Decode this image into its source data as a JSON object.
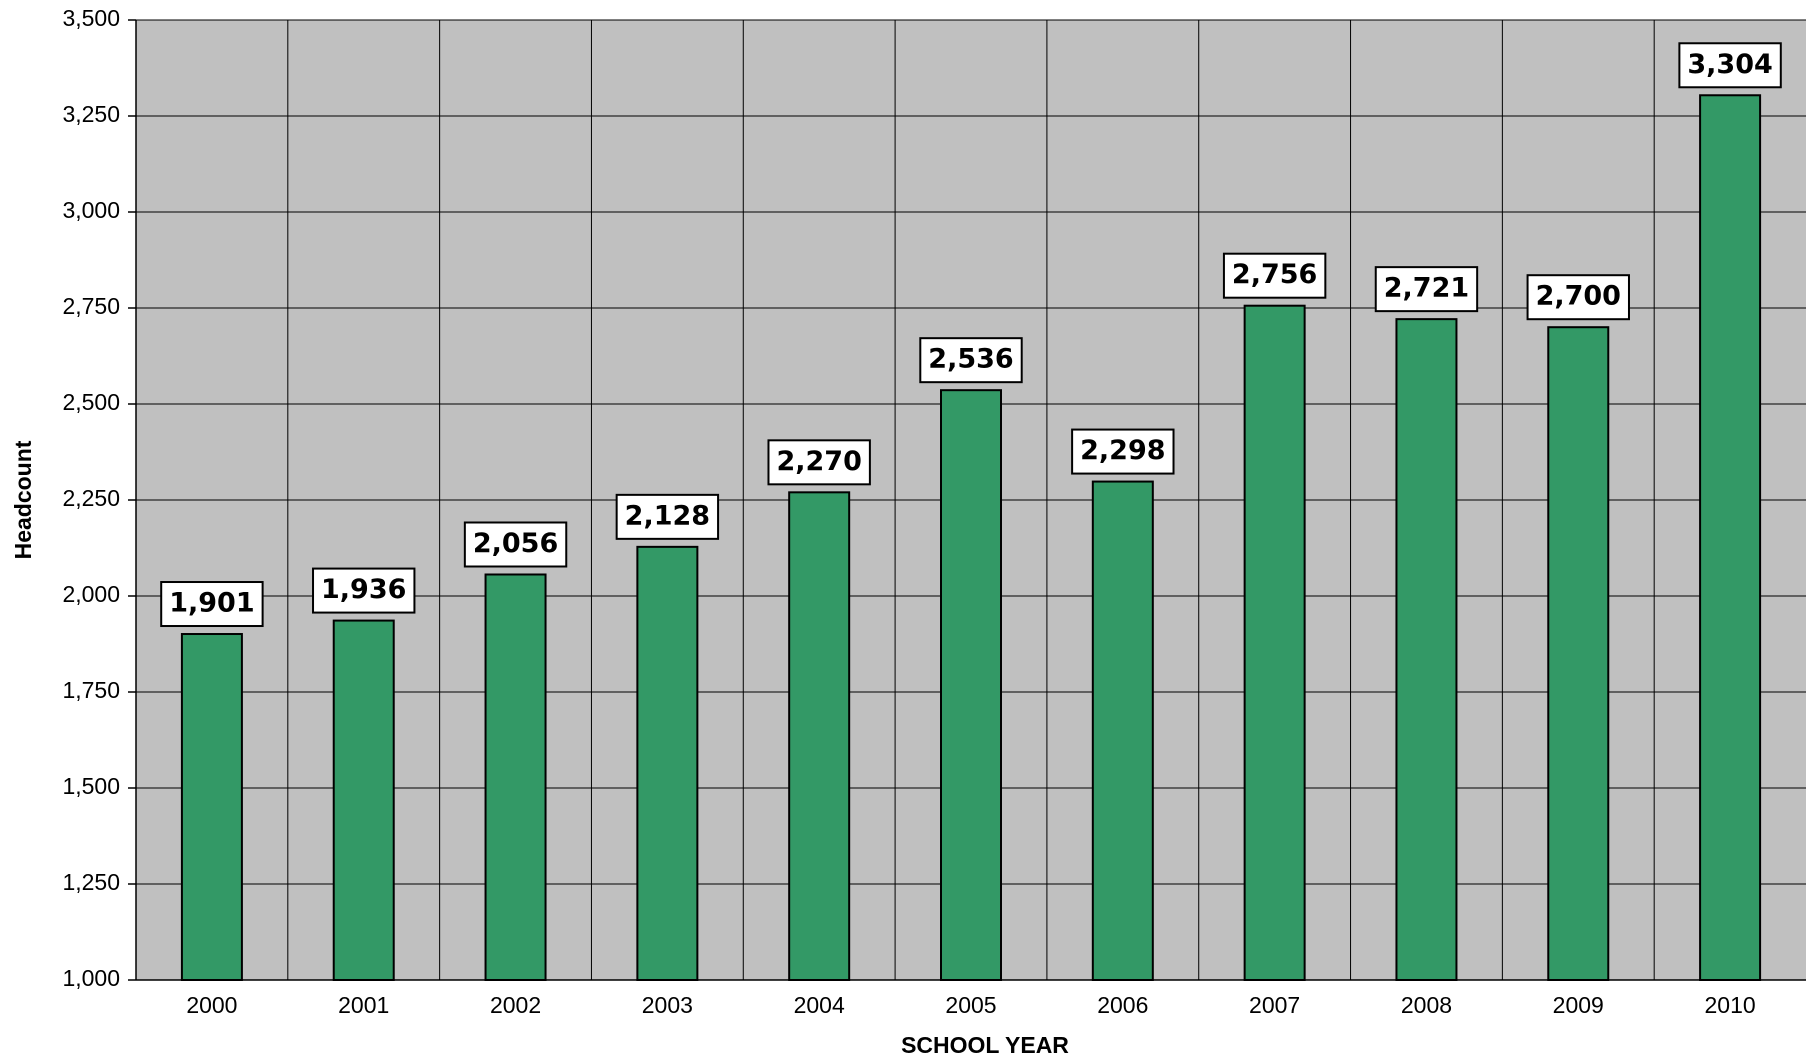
{
  "chart_data": {
    "type": "bar",
    "x_label": "SCHOOL YEAR",
    "y_label": "Headcount",
    "categories": [
      "2000",
      "2001",
      "2002",
      "2003",
      "2004",
      "2005",
      "2006",
      "2007",
      "2008",
      "2009",
      "2010"
    ],
    "values": [
      1901,
      1936,
      2056,
      2128,
      2270,
      2536,
      2298,
      2756,
      2721,
      2700,
      3304
    ],
    "value_labels": [
      "1,901",
      "1,936",
      "2,056",
      "2,128",
      "2,270",
      "2,536",
      "2,298",
      "2,756",
      "2,721",
      "2,700",
      "3,304"
    ],
    "color": "#339966",
    "plot_background": "#c0c0c0",
    "ylim": [
      1000,
      3500
    ],
    "yticks": [
      {
        "value": 1000,
        "label": "1,000"
      },
      {
        "value": 1250,
        "label": "1,250"
      },
      {
        "value": 1500,
        "label": "1,500"
      },
      {
        "value": 1750,
        "label": "1,750"
      },
      {
        "value": 2000,
        "label": "2,000"
      },
      {
        "value": 2250,
        "label": "2,250"
      },
      {
        "value": 2500,
        "label": "2,500"
      },
      {
        "value": 2750,
        "label": "2,750"
      },
      {
        "value": 3000,
        "label": "3,000"
      },
      {
        "value": 3250,
        "label": "3,250"
      },
      {
        "value": 3500,
        "label": "3,500"
      }
    ],
    "grid": true
  }
}
